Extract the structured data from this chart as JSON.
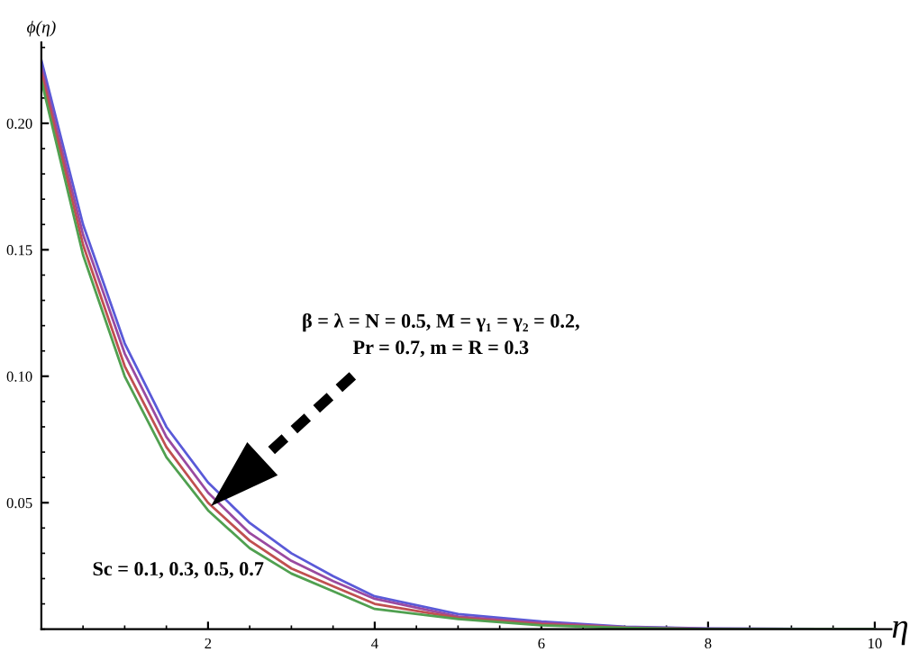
{
  "chart_data": {
    "type": "line",
    "xlabel": "η",
    "ylabel": "ϕ(η)",
    "x": [
      0,
      0.5,
      1,
      1.5,
      2,
      2.5,
      3,
      3.5,
      4,
      5,
      6,
      7,
      8,
      10
    ],
    "series": [
      {
        "color": "#5a5ad8",
        "values": [
          0.225,
          0.16,
          0.113,
          0.08,
          0.058,
          0.042,
          0.03,
          0.021,
          0.013,
          0.006,
          0.003,
          0.001,
          0.0003,
          0
        ]
      },
      {
        "color": "#9a4aa0",
        "values": [
          0.222,
          0.156,
          0.109,
          0.076,
          0.054,
          0.038,
          0.027,
          0.019,
          0.012,
          0.005,
          0.0025,
          0.0008,
          0.0002,
          0
        ]
      },
      {
        "color": "#c05050",
        "values": [
          0.22,
          0.152,
          0.104,
          0.072,
          0.05,
          0.035,
          0.024,
          0.017,
          0.01,
          0.0045,
          0.002,
          0.0006,
          null,
          null
        ]
      },
      {
        "color": "#50a050",
        "values": [
          0.217,
          0.148,
          0.1,
          0.068,
          0.047,
          0.032,
          0.022,
          0.015,
          0.008,
          0.004,
          0.0015,
          0.0005,
          0,
          0
        ]
      }
    ],
    "xlim": [
      0,
      10.2
    ],
    "ylim": [
      0,
      0.232
    ],
    "xticks": [
      2,
      4,
      6,
      8,
      10
    ],
    "yticks": [
      {
        "value": 0.05,
        "label": "0.05"
      },
      {
        "value": 0.1,
        "label": "0.10"
      },
      {
        "value": 0.15,
        "label": "0.15"
      },
      {
        "value": 0.2,
        "label": "0.20"
      }
    ],
    "annotations": [
      "β = λ = N = 0.5, M = γ₁ = γ₂ = 0.2,\nPr = 0.7, m = R = 0.3",
      "Sc = 0.1, 0.3, 0.5, 0.7"
    ],
    "grid": false,
    "legend": false,
    "marker": "none",
    "line_style": "solid"
  }
}
